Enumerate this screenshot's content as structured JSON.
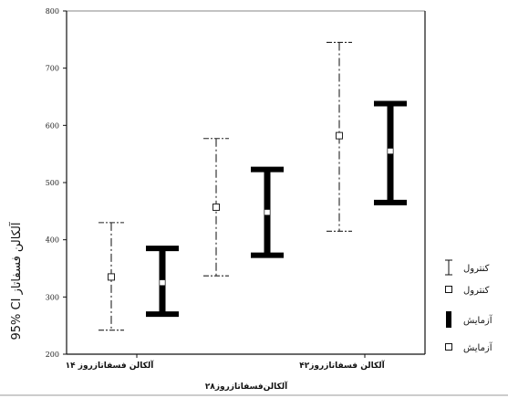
{
  "chart_data": {
    "type": "error_bar",
    "title": "",
    "ylabel": "95% CI آلکالن فسفاتاز",
    "xlabel": "آلکالن‌فسفاتازروز۲۸",
    "ylim": [
      200,
      800
    ],
    "yticks": [
      200,
      300,
      400,
      500,
      600,
      700,
      800
    ],
    "categories": [
      "آلکالن فسفاتازروز ۱۴",
      "آلکالن‌فسفاتازروز۲۸",
      "آلکالن فسفاتازروز۴۲"
    ],
    "category_labels_printed": [
      "آلکالن فسفاتازروز ۱۴",
      "",
      "آلکالن فسفاتازروز۴۲"
    ],
    "series": [
      {
        "name": "کنترول",
        "style": "thin-dashdot",
        "color": "#222222",
        "mean": [
          335,
          457,
          582
        ],
        "lower": [
          242,
          337,
          415
        ],
        "upper": [
          430,
          577,
          745
        ]
      },
      {
        "name": "آزمایش",
        "style": "thick",
        "color": "#000000",
        "mean": [
          325,
          448,
          555
        ],
        "lower": [
          270,
          373,
          465
        ],
        "upper": [
          385,
          523,
          638
        ]
      }
    ],
    "legend": {
      "position": "right",
      "entries": [
        {
          "label": "کنترول",
          "symbol": "thin-errorbar"
        },
        {
          "label": "کنترول",
          "symbol": "square-marker"
        },
        {
          "label": "آزمایش",
          "symbol": "thick-errorbar"
        },
        {
          "label": "آزمایش",
          "symbol": "square-marker"
        }
      ]
    },
    "grid": false
  }
}
